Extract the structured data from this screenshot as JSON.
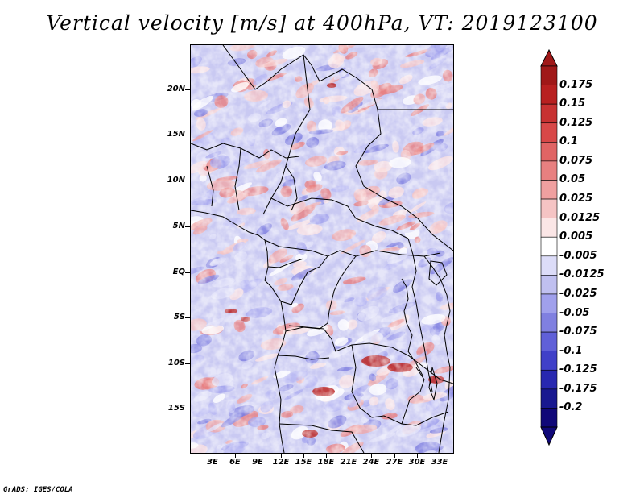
{
  "title": "Vertical velocity [m/s] at 400hPa, VT: 2019123100",
  "credit": "GrADS: IGES/COLA",
  "map": {
    "lat_labels": [
      "20N",
      "15N",
      "10N",
      "5N",
      "EQ",
      "5S",
      "10S",
      "15S"
    ],
    "lon_labels": [
      "3E",
      "6E",
      "9E",
      "12E",
      "15E",
      "18E",
      "21E",
      "24E",
      "27E",
      "30E",
      "33E"
    ]
  },
  "colorbar": {
    "labels": [
      "0.175",
      "0.15",
      "0.125",
      "0.1",
      "0.075",
      "0.05",
      "0.025",
      "0.0125",
      "0.005",
      "-0.005",
      "-0.0125",
      "-0.025",
      "-0.05",
      "-0.075",
      "-0.1",
      "-0.125",
      "-0.175",
      "-0.2"
    ],
    "colors": [
      "#a01818",
      "#b82020",
      "#c83232",
      "#d84848",
      "#e06464",
      "#e88080",
      "#f0a0a0",
      "#f5c4c4",
      "#fbe6e6",
      "#ffffff",
      "#dcdcf8",
      "#c0c0f0",
      "#a0a0ec",
      "#8080e0",
      "#6060d8",
      "#4040c8",
      "#2828b0",
      "#181890",
      "#100878"
    ]
  }
}
